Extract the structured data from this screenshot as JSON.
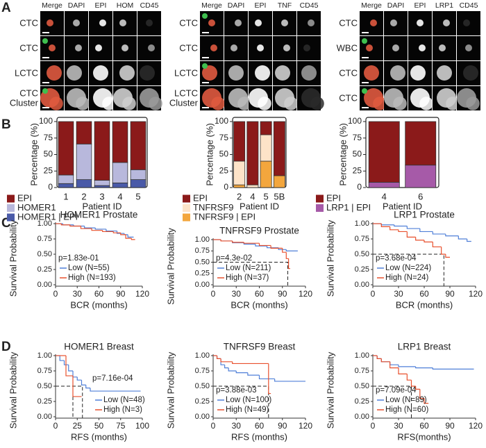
{
  "panel_letters": [
    "A",
    "B",
    "C",
    "D"
  ],
  "image_grids": [
    {
      "headers": [
        {
          "text": "Merge",
          "color": "#000000"
        },
        {
          "text": "DAPI",
          "color": "#2b3aa8"
        },
        {
          "text": "EPI",
          "color": "#a01010"
        },
        {
          "text": "HOM",
          "color": "#a0a0a0"
        },
        {
          "text": "CD45",
          "color": "#2a9d3a"
        }
      ],
      "rows": [
        [
          "CTC"
        ],
        [
          "CTC"
        ],
        [
          "LCTC"
        ],
        [
          "CTC",
          "Cluster"
        ]
      ]
    },
    {
      "headers": [
        {
          "text": "Merge",
          "color": "#000000"
        },
        {
          "text": "DAPI",
          "color": "#2b3aa8"
        },
        {
          "text": "EPI",
          "color": "#a01010"
        },
        {
          "text": "TNF",
          "color": "#a0a0a0"
        },
        {
          "text": "CD45",
          "color": "#2a9d3a"
        }
      ],
      "rows": [
        [
          "CTC"
        ],
        [
          "CTC"
        ],
        [
          "LCTC"
        ],
        [
          "LCTC",
          "Cluster"
        ]
      ]
    },
    {
      "headers": [
        {
          "text": "Merge",
          "color": "#000000"
        },
        {
          "text": "DAPI",
          "color": "#2b3aa8"
        },
        {
          "text": "EPI",
          "color": "#a01010"
        },
        {
          "text": "LRP1",
          "color": "#a0a0a0"
        },
        {
          "text": "CD45",
          "color": "#2a9d3a"
        }
      ],
      "rows": [
        [
          "CTC"
        ],
        [
          "WBC"
        ],
        [
          "CTC"
        ],
        [
          "CTC"
        ]
      ]
    }
  ],
  "chart_data": [
    {
      "type": "bar",
      "stacked": true,
      "ylabel": "Percentage (%)",
      "xlabel": "Patient ID",
      "categories": [
        "1",
        "2",
        "3",
        "4",
        "5"
      ],
      "ylim": [
        0,
        100
      ],
      "yticks": [
        0,
        25,
        50,
        75,
        100
      ],
      "series": [
        {
          "name": "EPI",
          "color": "#8b1a1a",
          "values": [
            81,
            34,
            89,
            62,
            73
          ]
        },
        {
          "name": "HOMER1",
          "color": "#b8b8dc",
          "values": [
            13,
            54,
            8,
            31,
            15
          ]
        },
        {
          "name": "HOMER1 | EPI",
          "color": "#4a5aa8",
          "values": [
            6,
            12,
            3,
            7,
            12
          ]
        }
      ]
    },
    {
      "type": "bar",
      "stacked": true,
      "ylabel": "Percentage (%)",
      "xlabel": "Patient ID",
      "categories": [
        "2",
        "4",
        "5",
        "5B"
      ],
      "ylim": [
        0,
        100
      ],
      "yticks": [
        0,
        25,
        50,
        75,
        100
      ],
      "series": [
        {
          "name": "EPI",
          "color": "#8b1a1a",
          "values": [
            60,
            96,
            20,
            82
          ]
        },
        {
          "name": "TNFRSF9",
          "color": "#fde3c8",
          "values": [
            36,
            4,
            40,
            0
          ]
        },
        {
          "name": "TNFRSF9 | EPI",
          "color": "#f3a63d",
          "values": [
            4,
            0,
            40,
            18
          ]
        }
      ]
    },
    {
      "type": "bar",
      "stacked": true,
      "ylabel": "Percentage (%)",
      "xlabel": "Patient ID",
      "categories": [
        "4",
        "6"
      ],
      "ylim": [
        0,
        100
      ],
      "yticks": [
        0,
        25,
        50,
        75,
        100
      ],
      "series": [
        {
          "name": "EPI",
          "color": "#8b1a1a",
          "values": [
            92,
            66
          ]
        },
        {
          "name": "LRP1 | EPI",
          "color": "#a65aa8",
          "values": [
            8,
            34
          ]
        }
      ]
    },
    {
      "type": "survival",
      "title": "HOMER1 Prostate",
      "xlabel": "BCR (months)",
      "ylabel": "Survival Probability",
      "pvalue": "p=1.83e-01",
      "legend": "lower left",
      "xlim": [
        0,
        120
      ],
      "xticks": [
        0,
        30,
        60,
        90,
        120
      ],
      "ylim": [
        0,
        1
      ],
      "yticks": [
        {
          "value": 0,
          "label": "0.00"
        },
        0.25,
        {
          "value": 0.5,
          "label": "0.50"
        },
        0.75,
        {
          "value": 1,
          "label": "1.00"
        }
      ],
      "medians": [],
      "series": [
        {
          "name": "Low (N=55)",
          "color": "#4f7fd8",
          "x": [
            0,
            10,
            25,
            40,
            55,
            70,
            85,
            95,
            100,
            108
          ],
          "values": [
            1,
            0.98,
            0.96,
            0.93,
            0.91,
            0.88,
            0.84,
            0.82,
            0.78,
            0.78
          ]
        },
        {
          "name": "High (N=193)",
          "color": "#e8502d",
          "x": [
            0,
            8,
            20,
            35,
            50,
            65,
            80,
            90,
            97,
            105,
            110
          ],
          "values": [
            1,
            0.98,
            0.96,
            0.92,
            0.89,
            0.87,
            0.85,
            0.82,
            0.76,
            0.74,
            0.74
          ]
        }
      ]
    },
    {
      "type": "survival",
      "title": "TNFRSF9 Prostate",
      "xlabel": "BCR (months)",
      "ylabel": "Survival Probability",
      "pvalue": "p=4.3e-02",
      "legend": "lower left",
      "xlim": [
        0,
        120
      ],
      "xticks": [
        0,
        30,
        60,
        90,
        120
      ],
      "ylim": [
        0,
        1
      ],
      "yticks": [
        {
          "value": 0,
          "label": "0.00"
        },
        0.25,
        {
          "value": 0.5,
          "label": "0.50"
        },
        0.75,
        {
          "value": 1,
          "label": "1.00"
        }
      ],
      "medians": [
        {
          "x": 97,
          "y": 0.5
        }
      ],
      "series": [
        {
          "name": "Low (N=211)",
          "color": "#4f7fd8",
          "x": [
            0,
            10,
            25,
            40,
            55,
            70,
            85,
            95,
            110
          ],
          "values": [
            1,
            0.97,
            0.93,
            0.9,
            0.86,
            0.82,
            0.78,
            0.75,
            0.75
          ]
        },
        {
          "name": "High (N=37)",
          "color": "#e8502d",
          "x": [
            0,
            10,
            25,
            40,
            60,
            75,
            90,
            95,
            98,
            100
          ],
          "values": [
            1,
            0.97,
            0.94,
            0.92,
            0.87,
            0.81,
            0.72,
            0.58,
            0.36,
            0.36
          ]
        }
      ]
    },
    {
      "type": "survival",
      "title": "LRP1 Prostate",
      "xlabel": "BCR (months)",
      "ylabel": "Survival Probability",
      "pvalue": "p=3.68e-04",
      "legend": "lower left",
      "xlim": [
        0,
        120
      ],
      "xticks": [
        0,
        30,
        60,
        90,
        120
      ],
      "ylim": [
        0,
        1
      ],
      "yticks": [
        {
          "value": 0,
          "label": "0.00"
        },
        0.25,
        {
          "value": 0.5,
          "label": "0.50"
        },
        0.75,
        {
          "value": 1,
          "label": "1.00"
        }
      ],
      "medians": [
        {
          "x": 83,
          "y": 0.5
        }
      ],
      "series": [
        {
          "name": "Low (N=224)",
          "color": "#4f7fd8",
          "x": [
            0,
            10,
            25,
            40,
            55,
            70,
            85,
            100,
            110,
            115
          ],
          "values": [
            1,
            0.98,
            0.96,
            0.92,
            0.87,
            0.83,
            0.8,
            0.75,
            0.71,
            0.71
          ]
        },
        {
          "name": "High (N=24)",
          "color": "#e8502d",
          "x": [
            0,
            10,
            20,
            30,
            40,
            50,
            60,
            70,
            80,
            85,
            90
          ],
          "values": [
            1,
            0.95,
            0.9,
            0.87,
            0.78,
            0.73,
            0.7,
            0.62,
            0.5,
            0.45,
            0.45
          ]
        }
      ]
    },
    {
      "type": "survival",
      "title": "HOMER1 Breast",
      "xlabel": "RFS (months)",
      "ylabel": "Survival Probability",
      "pvalue": "p=7.16e-04",
      "legend": "lower right",
      "xlim": [
        0,
        100
      ],
      "xticks": [
        0,
        25,
        50,
        75,
        100
      ],
      "ylim": [
        0,
        1
      ],
      "yticks": [
        {
          "value": 0,
          "label": "0.00"
        },
        0.25,
        {
          "value": 0.5,
          "label": "0.50"
        },
        0.75,
        {
          "value": 1,
          "label": "1.00"
        }
      ],
      "medians": [
        {
          "x": 20,
          "y": 0.5
        },
        {
          "x": 31,
          "y": 0.5
        }
      ],
      "series": [
        {
          "name": "Low (N=48)",
          "color": "#4f7fd8",
          "x": [
            0,
            5,
            10,
            15,
            20,
            25,
            30,
            35,
            40,
            50,
            98
          ],
          "values": [
            1,
            0.92,
            0.85,
            0.75,
            0.65,
            0.6,
            0.52,
            0.47,
            0.42,
            0.42,
            0.42
          ]
        },
        {
          "name": "High (N=3)",
          "color": "#e8502d",
          "x": [
            0,
            12,
            20,
            30
          ],
          "values": [
            1,
            0.67,
            0.33,
            0.33
          ]
        }
      ]
    },
    {
      "type": "survival",
      "title": "TNFRSF9 Breast",
      "xlabel": "RFS (months)",
      "ylabel": "Survival Probability",
      "pvalue": "p=3.88e-03",
      "legend": "lower left",
      "xlim": [
        0,
        120
      ],
      "xticks": [
        0,
        30,
        60,
        90,
        120
      ],
      "ylim": [
        0,
        1
      ],
      "yticks": [
        {
          "value": 0,
          "label": "0.00"
        },
        0.25,
        {
          "value": 0.5,
          "label": "0.50"
        },
        0.75,
        {
          "value": 1,
          "label": "1.00"
        }
      ],
      "medians": [
        {
          "x": 72,
          "y": 0.5
        }
      ],
      "series": [
        {
          "name": "Low (N=100)",
          "color": "#4f7fd8",
          "x": [
            0,
            5,
            10,
            15,
            20,
            30,
            45,
            60,
            80,
            120
          ],
          "values": [
            1,
            0.95,
            0.85,
            0.8,
            0.75,
            0.72,
            0.68,
            0.62,
            0.58,
            0.58
          ]
        },
        {
          "name": "High (N=49)",
          "color": "#e8502d",
          "x": [
            0,
            5,
            10,
            25,
            72,
            75
          ],
          "values": [
            1,
            0.95,
            0.9,
            0.87,
            0.38,
            0.38
          ]
        }
      ]
    },
    {
      "type": "survival",
      "title": "LRP1 Breast",
      "xlabel": "RFS(months)",
      "ylabel": "Survival Probability",
      "pvalue": "p=7.09e-04",
      "legend": "lower left",
      "xlim": [
        0,
        120
      ],
      "xticks": [
        0,
        30,
        60,
        90,
        120
      ],
      "ylim": [
        0,
        1
      ],
      "yticks": [
        {
          "value": 0,
          "label": "0.00"
        },
        0.25,
        {
          "value": 0.5,
          "label": "0.50"
        },
        0.75,
        {
          "value": 1,
          "label": "1.00"
        }
      ],
      "medians": [
        {
          "x": 45,
          "y": 0.5
        }
      ],
      "series": [
        {
          "name": "Low (N=89)",
          "color": "#4f7fd8",
          "x": [
            0,
            5,
            10,
            20,
            30,
            50,
            70,
            118
          ],
          "values": [
            1,
            0.95,
            0.9,
            0.85,
            0.82,
            0.8,
            0.78,
            0.78
          ]
        },
        {
          "name": "High (N=60)",
          "color": "#e8502d",
          "x": [
            0,
            5,
            10,
            20,
            30,
            40,
            45,
            50,
            55,
            60,
            65
          ],
          "values": [
            1,
            0.95,
            0.9,
            0.8,
            0.7,
            0.6,
            0.5,
            0.45,
            0.3,
            0.22,
            0.22
          ]
        }
      ]
    }
  ]
}
